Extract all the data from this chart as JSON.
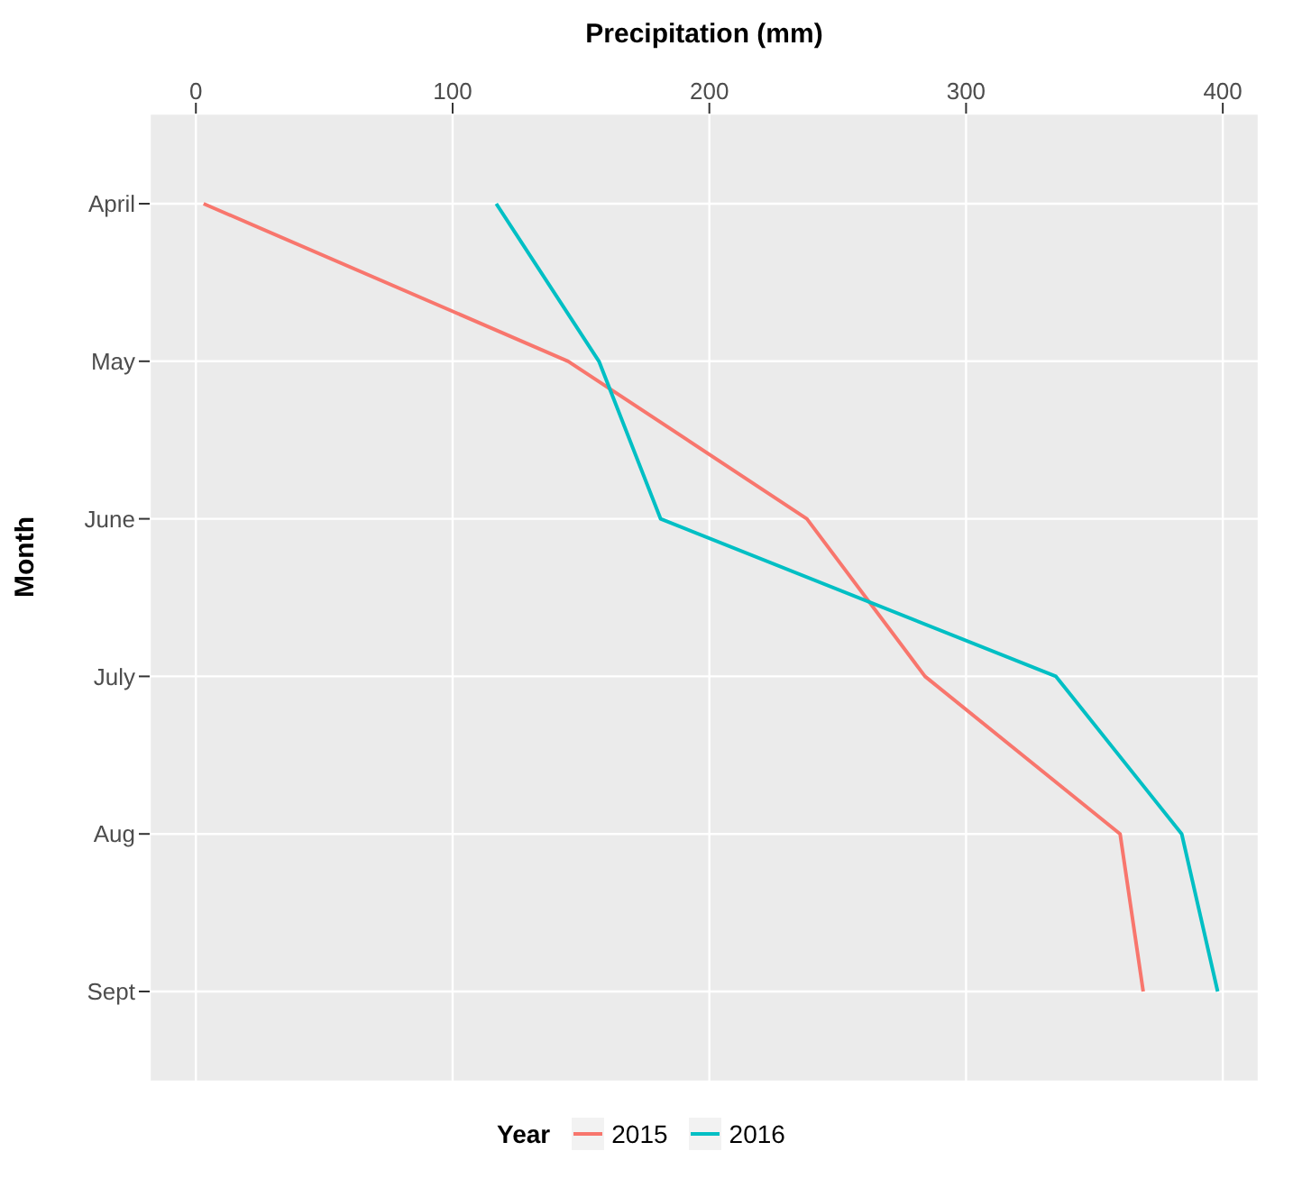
{
  "chart_data": {
    "type": "line",
    "orientation": "horizontal",
    "xlabel": "Precipitation (mm)",
    "ylabel": "Month",
    "legend_title": "Year",
    "categories": [
      "April",
      "May",
      "June",
      "July",
      "Aug",
      "Sept"
    ],
    "series": [
      {
        "name": "2015",
        "color": "#f8766d",
        "values": [
          3,
          145,
          238,
          284,
          360,
          369
        ]
      },
      {
        "name": "2016",
        "color": "#00bfc4",
        "values": [
          117,
          157,
          181,
          335,
          384,
          398
        ]
      }
    ],
    "xlim": [
      -18,
      414
    ],
    "xticks": [
      0,
      100,
      200,
      300,
      400
    ],
    "grid": true,
    "legend": "bottom",
    "marker": "none",
    "line_style": "solid"
  }
}
